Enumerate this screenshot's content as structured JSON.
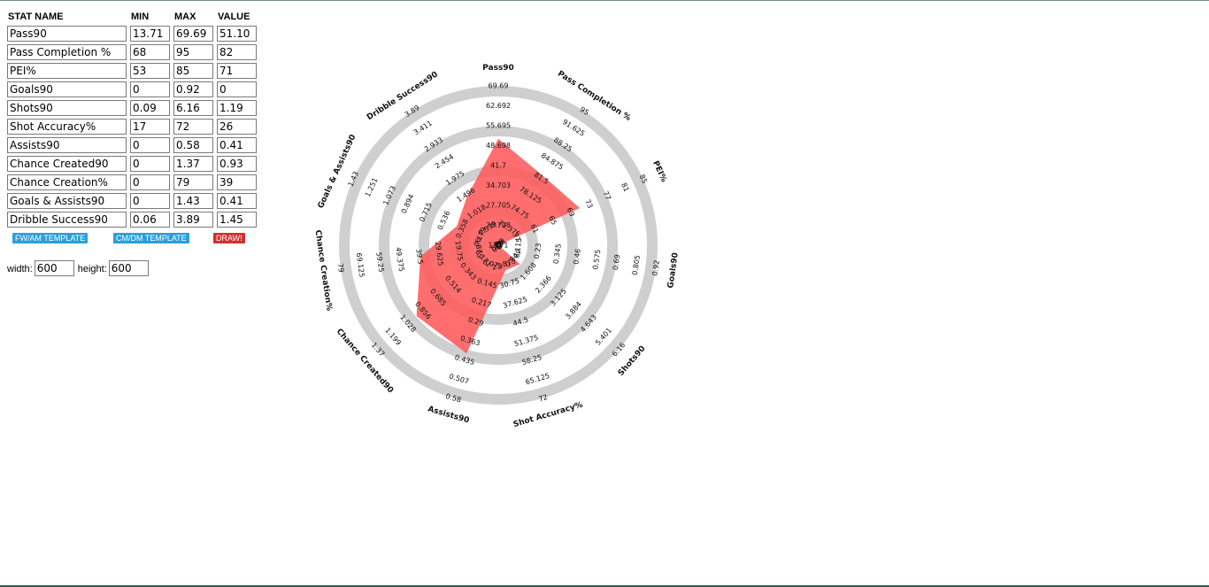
{
  "table": {
    "headers": {
      "name": "STAT NAME",
      "min": "MIN",
      "max": "MAX",
      "value": "VALUE"
    },
    "rows": [
      {
        "name": "Pass90",
        "min": "13.71",
        "max": "69.69",
        "value": "51.10"
      },
      {
        "name": "Pass Completion %",
        "min": "68",
        "max": "95",
        "value": "82"
      },
      {
        "name": "PEI%",
        "min": "53",
        "max": "85",
        "value": "71"
      },
      {
        "name": "Goals90",
        "min": "0",
        "max": "0.92",
        "value": "0"
      },
      {
        "name": "Shots90",
        "min": "0.09",
        "max": "6.16",
        "value": "1.19"
      },
      {
        "name": "Shot Accuracy%",
        "min": "17",
        "max": "72",
        "value": "26"
      },
      {
        "name": "Assists90",
        "min": "0",
        "max": "0.58",
        "value": "0.41"
      },
      {
        "name": "Chance Created90",
        "min": "0",
        "max": "1.37",
        "value": "0.93"
      },
      {
        "name": "Chance Creation%",
        "min": "0",
        "max": "79",
        "value": "39"
      },
      {
        "name": "Goals & Assists90",
        "min": "0",
        "max": "1.43",
        "value": "0.41"
      },
      {
        "name": "Dribble Success90",
        "min": "0.06",
        "max": "3.89",
        "value": "1.45"
      }
    ]
  },
  "buttons": {
    "fw_am": "FW/AM TEMPLATE",
    "cm_dm": "CM/DM TEMPLATE",
    "draw": "DRAW!"
  },
  "size": {
    "width_label": "width:",
    "width_value": "600",
    "height_label": "height:",
    "height_value": "600"
  },
  "colors": {
    "ring": "#cfcfcf",
    "fill": "#ff5a5a",
    "fill_opacity": 0.88,
    "draw_button": "#d0312d",
    "template_button": "#2a9fd8"
  },
  "chart_data": {
    "type": "radar",
    "rings": 8,
    "axes": [
      {
        "name": "Pass90",
        "min": 13.71,
        "max": 69.69,
        "value": 51.1,
        "ticks": [
          "13.71",
          "20.708",
          "27.705",
          "34.703",
          "41.7",
          "48.698",
          "55.695",
          "62.692",
          "69.69"
        ]
      },
      {
        "name": "Pass Completion %",
        "min": 68,
        "max": 95,
        "value": 82,
        "ticks": [
          "68",
          "71.375",
          "74.75",
          "78.125",
          "81.5",
          "84.875",
          "88.25",
          "91.625",
          "95"
        ]
      },
      {
        "name": "PEI%",
        "min": 53,
        "max": 85,
        "value": 71,
        "ticks": [
          "53",
          "57",
          "61",
          "65",
          "69",
          "73",
          "77",
          "81",
          "85"
        ]
      },
      {
        "name": "Goals90",
        "min": 0,
        "max": 0.92,
        "value": 0,
        "ticks": [
          "0",
          "0.115",
          "0.23",
          "0.345",
          "0.46",
          "0.575",
          "0.69",
          "0.805",
          "0.92"
        ]
      },
      {
        "name": "Shots90",
        "min": 0.09,
        "max": 6.16,
        "value": 1.19,
        "ticks": [
          "0.09",
          "0.849",
          "1.608",
          "2.366",
          "3.125",
          "3.884",
          "4.643",
          "5.401",
          "6.16"
        ]
      },
      {
        "name": "Shot Accuracy%",
        "min": 17,
        "max": 72,
        "value": 26,
        "ticks": [
          "17",
          "23.875",
          "30.75",
          "37.625",
          "44.5",
          "51.375",
          "58.25",
          "65.125",
          "72"
        ]
      },
      {
        "name": "Assists90",
        "min": 0,
        "max": 0.58,
        "value": 0.41,
        "ticks": [
          "0",
          "0.073",
          "0.145",
          "0.217",
          "0.29",
          "0.363",
          "0.435",
          "0.507",
          "0.58"
        ]
      },
      {
        "name": "Chance Created90",
        "min": 0,
        "max": 1.37,
        "value": 0.93,
        "ticks": [
          "0",
          "0.171",
          "0.343",
          "0.514",
          "0.685",
          "0.856",
          "1.028",
          "1.199",
          "1.37"
        ]
      },
      {
        "name": "Chance Creation%",
        "min": 0,
        "max": 79,
        "value": 39,
        "ticks": [
          "0",
          "9.875",
          "19.75",
          "29.625",
          "39.5",
          "49.375",
          "59.25",
          "69.125",
          "79"
        ]
      },
      {
        "name": "Goals & Assists90",
        "min": 0,
        "max": 1.43,
        "value": 0.41,
        "ticks": [
          "0",
          "0.179",
          "0.358",
          "0.536",
          "0.715",
          "0.894",
          "1.073",
          "1.251",
          "1.43"
        ]
      },
      {
        "name": "Dribble Success90",
        "min": 0.06,
        "max": 3.89,
        "value": 1.45,
        "ticks": [
          "0.06",
          "0.539",
          "1.018",
          "1.496",
          "1.975",
          "2.454",
          "2.933",
          "3.411",
          "3.89"
        ]
      }
    ]
  }
}
